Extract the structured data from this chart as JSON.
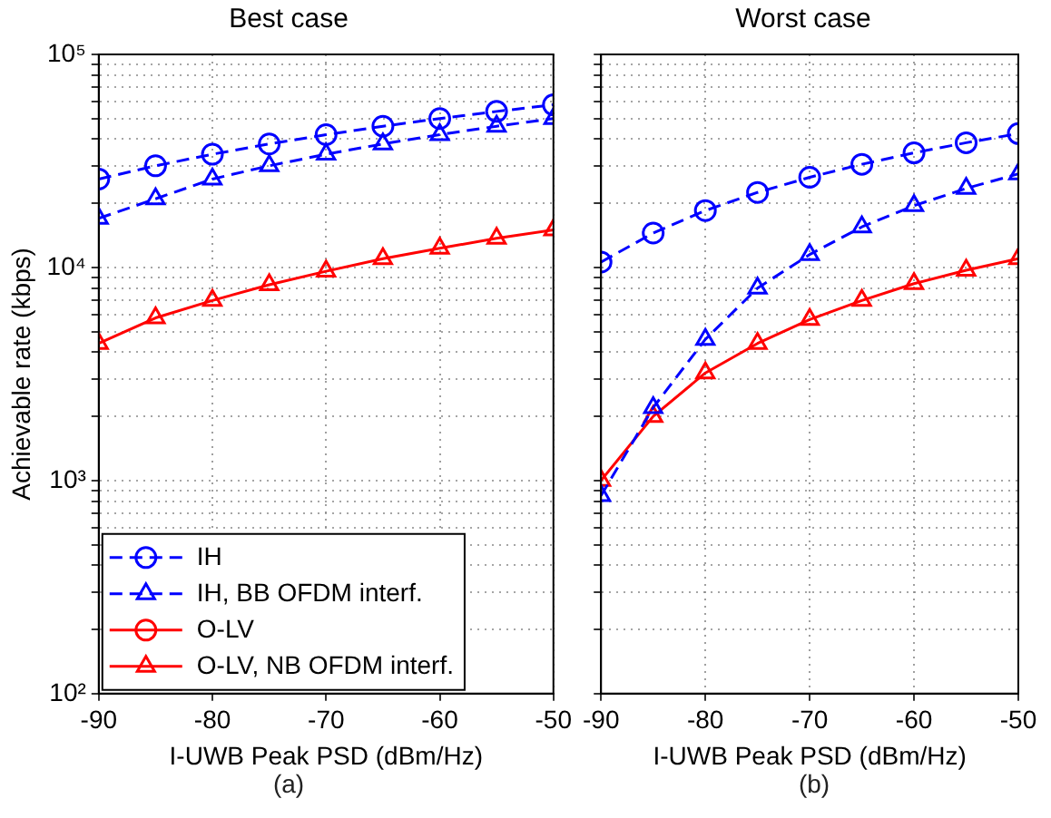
{
  "chart_data": [
    {
      "type": "line",
      "title": "Best case",
      "xlabel": "I-UWB Peak PSD (dBm/Hz)",
      "ylabel": "Achievable rate (kbps)",
      "annotations": [
        "(a)"
      ],
      "log": "y",
      "grid": true,
      "legend": "bottom left",
      "x": [
        -90,
        -85,
        -80,
        -75,
        -70,
        -65,
        -60,
        -55,
        -50
      ],
      "xlim": [
        -90,
        -50
      ],
      "xticks": [
        -90,
        -80,
        -70,
        -60,
        -50
      ],
      "ylim": [
        100,
        100000
      ],
      "yticks": [
        {
          "value": 100,
          "label": "10²"
        },
        {
          "value": 200,
          "label": null
        },
        {
          "value": 300,
          "label": null
        },
        {
          "value": 400,
          "label": null
        },
        {
          "value": 500,
          "label": null
        },
        {
          "value": 600,
          "label": null
        },
        {
          "value": 700,
          "label": null
        },
        {
          "value": 800,
          "label": null
        },
        {
          "value": 900,
          "label": null
        },
        {
          "value": 1000,
          "label": "10³"
        },
        {
          "value": 2000,
          "label": null
        },
        {
          "value": 3000,
          "label": null
        },
        {
          "value": 4000,
          "label": null
        },
        {
          "value": 5000,
          "label": null
        },
        {
          "value": 6000,
          "label": null
        },
        {
          "value": 7000,
          "label": null
        },
        {
          "value": 8000,
          "label": null
        },
        {
          "value": 9000,
          "label": null
        },
        {
          "value": 10000,
          "label": "10⁴"
        },
        {
          "value": 20000,
          "label": null
        },
        {
          "value": 30000,
          "label": null
        },
        {
          "value": 40000,
          "label": null
        },
        {
          "value": 50000,
          "label": null
        },
        {
          "value": 60000,
          "label": null
        },
        {
          "value": 70000,
          "label": null
        },
        {
          "value": 80000,
          "label": null
        },
        {
          "value": 90000,
          "label": null
        },
        {
          "value": 100000,
          "label": "10⁵"
        }
      ],
      "series": [
        {
          "name": "IH",
          "color": "#0000ff",
          "marker": "circle",
          "line_style": "dashed",
          "values": [
            26000,
            30000,
            34000,
            38000,
            42000,
            46000,
            50000,
            54000,
            58000
          ]
        },
        {
          "name": "IH, BB OFDM interf.",
          "color": "#0000ff",
          "marker": "triangle",
          "line_style": "dashed",
          "values": [
            17000,
            21000,
            26000,
            30000,
            34000,
            38000,
            42000,
            46000,
            50000
          ]
        },
        {
          "name": "O-LV",
          "color": "#ff0000",
          "marker": "circle",
          "line_style": "solid",
          "values": [
            null,
            null,
            null,
            null,
            null,
            null,
            null,
            null,
            null
          ]
        },
        {
          "name": "O-LV, NB OFDM interf.",
          "color": "#ff0000",
          "marker": "triangle",
          "line_style": "solid",
          "values": [
            4400,
            5800,
            7000,
            8300,
            9600,
            11000,
            12300,
            13700,
            15000
          ]
        }
      ]
    },
    {
      "type": "line",
      "title": "Worst case",
      "xlabel": "I-UWB Peak PSD (dBm/Hz)",
      "annotations": [
        "(b)"
      ],
      "log": "y",
      "grid": true,
      "tick_labels": "x",
      "x": [
        -90,
        -85,
        -80,
        -75,
        -70,
        -65,
        -60,
        -55,
        -50
      ],
      "xlim": [
        -90,
        -50
      ],
      "xticks": [
        -90,
        -80,
        -70,
        -60,
        -50
      ],
      "ylim": [
        100,
        100000
      ],
      "yticks": [
        {
          "value": 100,
          "label": null
        },
        {
          "value": 200,
          "label": null
        },
        {
          "value": 300,
          "label": null
        },
        {
          "value": 400,
          "label": null
        },
        {
          "value": 500,
          "label": null
        },
        {
          "value": 600,
          "label": null
        },
        {
          "value": 700,
          "label": null
        },
        {
          "value": 800,
          "label": null
        },
        {
          "value": 900,
          "label": null
        },
        {
          "value": 1000,
          "label": null
        },
        {
          "value": 2000,
          "label": null
        },
        {
          "value": 3000,
          "label": null
        },
        {
          "value": 4000,
          "label": null
        },
        {
          "value": 5000,
          "label": null
        },
        {
          "value": 6000,
          "label": null
        },
        {
          "value": 7000,
          "label": null
        },
        {
          "value": 8000,
          "label": null
        },
        {
          "value": 9000,
          "label": null
        },
        {
          "value": 10000,
          "label": null
        },
        {
          "value": 20000,
          "label": null
        },
        {
          "value": 30000,
          "label": null
        },
        {
          "value": 40000,
          "label": null
        },
        {
          "value": 50000,
          "label": null
        },
        {
          "value": 60000,
          "label": null
        },
        {
          "value": 70000,
          "label": null
        },
        {
          "value": 80000,
          "label": null
        },
        {
          "value": 90000,
          "label": null
        },
        {
          "value": 100000,
          "label": null
        }
      ],
      "series": [
        {
          "color": "#0000ff",
          "marker": "circle",
          "line_style": "dashed",
          "values": [
            10600,
            14500,
            18500,
            22500,
            26500,
            30500,
            34500,
            38500,
            42500
          ]
        },
        {
          "color": "#0000ff",
          "marker": "triangle",
          "line_style": "dashed",
          "values": [
            850,
            2200,
            4600,
            8000,
            11500,
            15500,
            19500,
            23500,
            27500
          ]
        },
        {
          "color": "#ff0000",
          "marker": "triangle",
          "line_style": "solid",
          "values": [
            1000,
            2000,
            3200,
            4400,
            5700,
            7000,
            8400,
            9700,
            11000
          ]
        }
      ]
    }
  ]
}
